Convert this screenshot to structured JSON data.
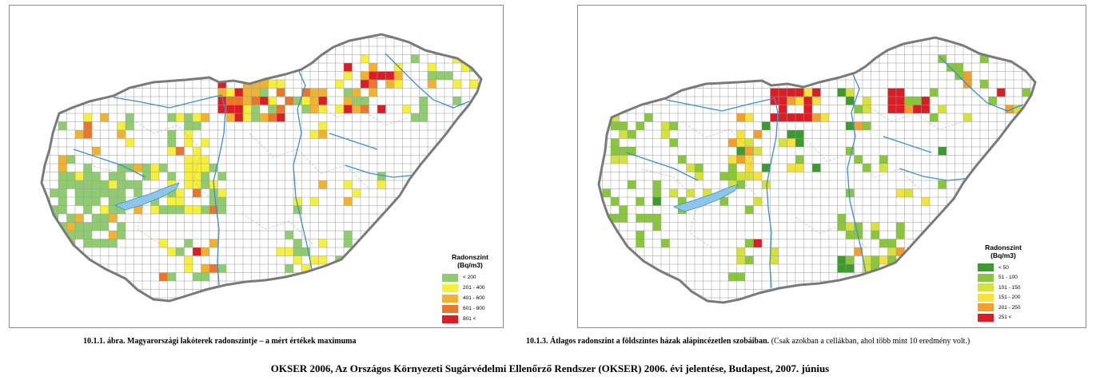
{
  "maps": [
    {
      "id": "left",
      "legend": {
        "title_line1": "Radonszint",
        "title_line2": "(Bq/m3)",
        "classes": [
          {
            "label": "< 200",
            "color": "#8fcc6f"
          },
          {
            "label": "201 - 400",
            "color": "#f7f03a"
          },
          {
            "label": "401 - 600",
            "color": "#f2b22e"
          },
          {
            "label": "601 - 800",
            "color": "#e8772c"
          },
          {
            "label": "801 <",
            "color": "#dd1d26"
          }
        ]
      },
      "caption": {
        "text": "10.1.1. ábra. Magyarországi lakóterek radonszintje – a mért értékek maximuma",
        "note": ""
      }
    },
    {
      "id": "right",
      "legend": {
        "title_line1": "Radonszint",
        "title_line2": "(Bq/m3)",
        "classes": [
          {
            "label": "< 50",
            "color": "#3d9a2f"
          },
          {
            "label": "51 - 100",
            "color": "#88c63a"
          },
          {
            "label": "101 - 150",
            "color": "#d4e23a"
          },
          {
            "label": "151 - 200",
            "color": "#f6e23a"
          },
          {
            "label": "201 - 250",
            "color": "#f2a02c"
          },
          {
            "label": "251 <",
            "color": "#dd1d26"
          }
        ]
      },
      "caption": {
        "text": "10.1.3. Átlagos radonszint a földszintes házak alápincézetlen szobáiban.",
        "note": "(Csak azokban a cellákban, ahol több mint 10 eredmény volt.)"
      }
    }
  ],
  "colors": {
    "border": "#7a7a7a",
    "grid": "#9a9a9a",
    "river": "#3b8fd0",
    "lake": "#8ec6ea",
    "county": "#e0a0a0"
  },
  "footer": "OKSER 2006, Az Országos Környezeti Sugárvédelmi Ellenőrző Rendszer (OKSER) 2006. évi jelentése, Budapest, 2007. június"
}
